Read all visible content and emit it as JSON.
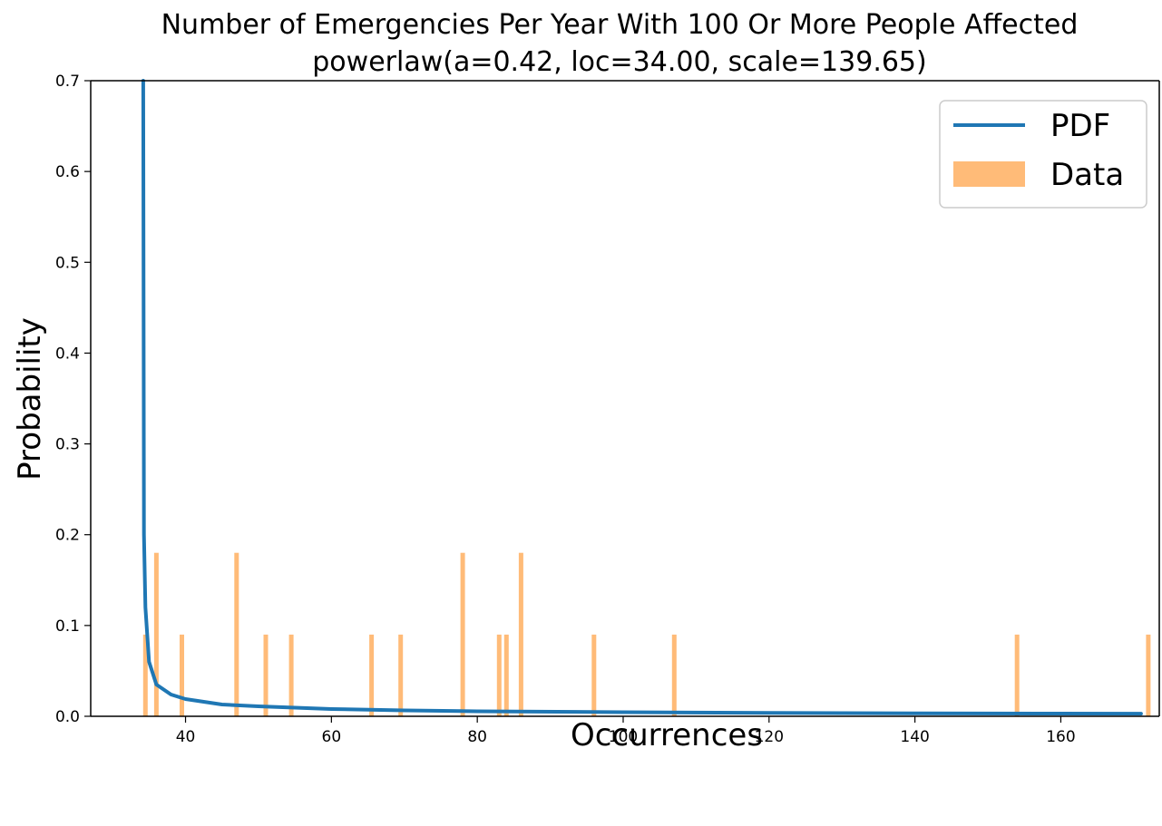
{
  "chart_data": {
    "type": "bar",
    "title": "Number of Emergencies Per Year With 100 Or More People Affected",
    "subtitle": "powerlaw(a=0.42, loc=34.00, scale=139.65)",
    "xlabel": "Occurrences",
    "ylabel": "Probability",
    "xlim": [
      27,
      173.5
    ],
    "ylim": [
      0,
      0.7
    ],
    "x_ticks": [
      40,
      60,
      80,
      100,
      120,
      140,
      160
    ],
    "y_ticks": [
      0.0,
      0.1,
      0.2,
      0.3,
      0.4,
      0.5,
      0.6,
      0.7
    ],
    "x_tick_labels": [
      "40",
      "60",
      "80",
      "100",
      "120",
      "140",
      "160"
    ],
    "y_tick_labels": [
      "0.0",
      "0.1",
      "0.2",
      "0.3",
      "0.4",
      "0.5",
      "0.6",
      "0.7"
    ],
    "grid": false,
    "legend_position": "top-right",
    "legend": [
      {
        "label": "PDF",
        "kind": "line",
        "color": "#1f77b4"
      },
      {
        "label": "Data",
        "kind": "patch",
        "color": "#ffbb78"
      }
    ],
    "series": [
      {
        "name": "Data",
        "type": "bar",
        "color": "#ffbb78",
        "points": [
          {
            "x": 34.5,
            "y": 0.09
          },
          {
            "x": 36,
            "y": 0.18
          },
          {
            "x": 39.5,
            "y": 0.09
          },
          {
            "x": 47,
            "y": 0.18
          },
          {
            "x": 51,
            "y": 0.09
          },
          {
            "x": 54.5,
            "y": 0.09
          },
          {
            "x": 65.5,
            "y": 0.09
          },
          {
            "x": 69.5,
            "y": 0.09
          },
          {
            "x": 78,
            "y": 0.18
          },
          {
            "x": 83,
            "y": 0.09
          },
          {
            "x": 84,
            "y": 0.09
          },
          {
            "x": 86,
            "y": 0.18
          },
          {
            "x": 96,
            "y": 0.09
          },
          {
            "x": 107,
            "y": 0.09
          },
          {
            "x": 154,
            "y": 0.09
          },
          {
            "x": 172,
            "y": 0.09
          }
        ]
      },
      {
        "name": "PDF",
        "type": "line",
        "color": "#1f77b4",
        "points": [
          {
            "x": 34.2,
            "y": 0.7
          },
          {
            "x": 34.3,
            "y": 0.2
          },
          {
            "x": 34.5,
            "y": 0.12
          },
          {
            "x": 35,
            "y": 0.06
          },
          {
            "x": 36,
            "y": 0.035
          },
          {
            "x": 38,
            "y": 0.024
          },
          {
            "x": 40,
            "y": 0.019
          },
          {
            "x": 45,
            "y": 0.013
          },
          {
            "x": 50,
            "y": 0.011
          },
          {
            "x": 60,
            "y": 0.008
          },
          {
            "x": 70,
            "y": 0.0065
          },
          {
            "x": 80,
            "y": 0.0055
          },
          {
            "x": 100,
            "y": 0.0045
          },
          {
            "x": 120,
            "y": 0.0038
          },
          {
            "x": 140,
            "y": 0.0033
          },
          {
            "x": 160,
            "y": 0.003
          },
          {
            "x": 171,
            "y": 0.0029
          }
        ]
      }
    ]
  }
}
